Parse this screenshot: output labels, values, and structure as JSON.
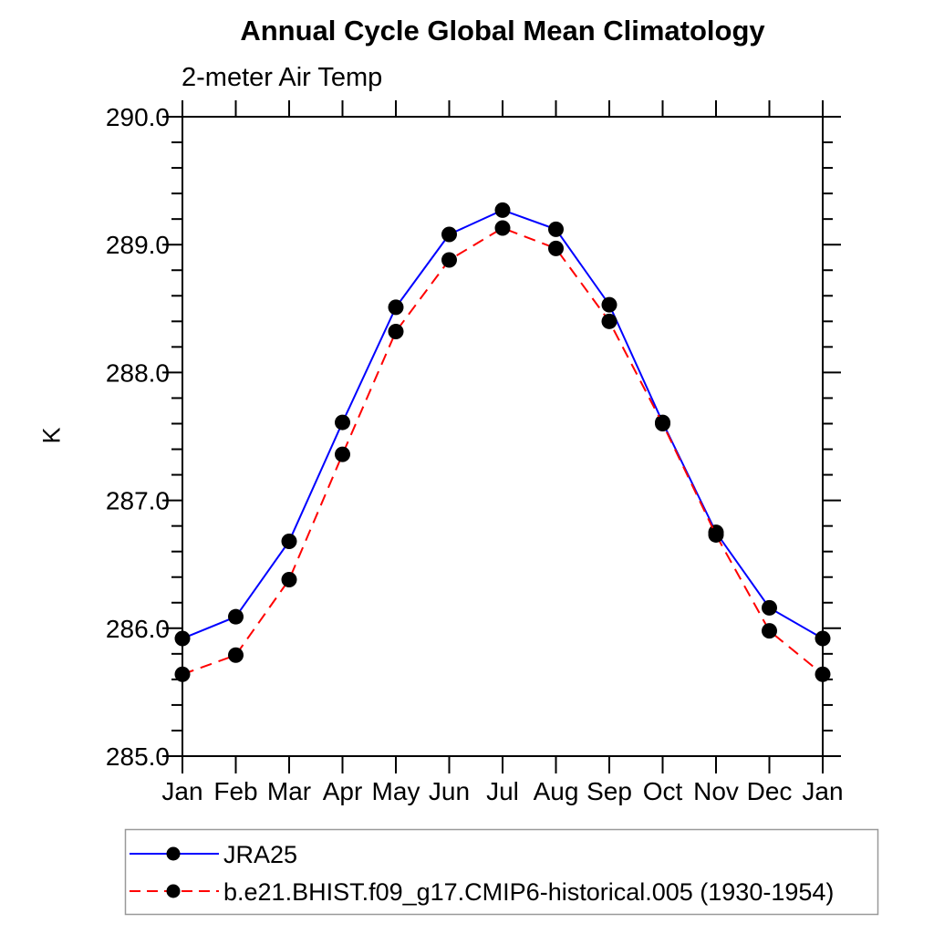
{
  "title": "Annual Cycle Global Mean Climatology",
  "subtitle": "2-meter Air Temp",
  "ylabel": "K",
  "chart_data": {
    "type": "line",
    "title": "Annual Cycle Global Mean Climatology",
    "subtitle": "2-meter Air Temp",
    "xlabel": "",
    "ylabel": "K",
    "categories": [
      "Jan",
      "Feb",
      "Mar",
      "Apr",
      "May",
      "Jun",
      "Jul",
      "Aug",
      "Sep",
      "Oct",
      "Nov",
      "Dec",
      "Jan"
    ],
    "series": [
      {
        "name": "JRA25",
        "color": "#0000ff",
        "line_style": "solid",
        "marker": "filled-circle",
        "marker_color": "#000000",
        "values": [
          285.92,
          286.09,
          286.68,
          287.61,
          288.51,
          289.08,
          289.27,
          289.12,
          288.53,
          287.61,
          286.75,
          286.16,
          285.92
        ]
      },
      {
        "name": "b.e21.BHIST.f09_g17.CMIP6-historical.005 (1930-1954)",
        "color": "#ff0000",
        "line_style": "dashed",
        "marker": "filled-circle",
        "marker_color": "#000000",
        "values": [
          285.64,
          285.79,
          286.38,
          287.36,
          288.32,
          288.88,
          289.13,
          288.97,
          288.4,
          287.6,
          286.73,
          285.98,
          285.64
        ]
      }
    ],
    "ylim": [
      285.0,
      290.0
    ],
    "y_major_ticks": [
      285.0,
      286.0,
      287.0,
      288.0,
      289.0,
      290.0
    ],
    "y_tick_labels": [
      "285.0",
      "286.0",
      "287.0",
      "288.0",
      "289.0",
      "290.0"
    ],
    "y_minor_step": 0.2,
    "grid": false,
    "legend_position": "below-plot-boxed",
    "frame_color": "#000000",
    "background_color": "#ffffff"
  }
}
